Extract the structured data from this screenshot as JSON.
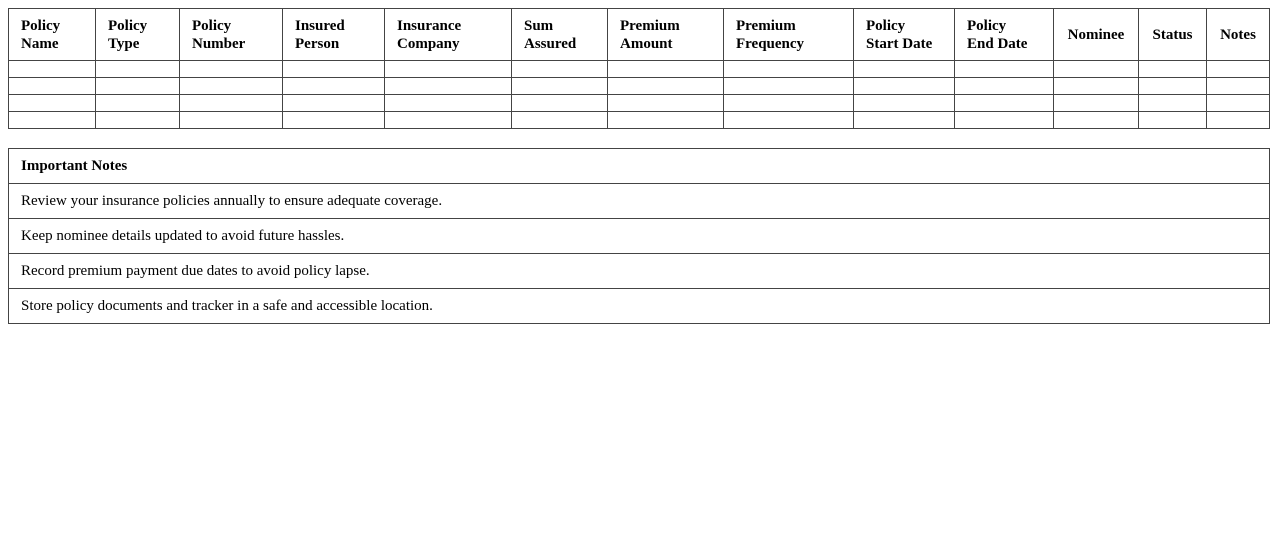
{
  "policy_table": {
    "headers": [
      "Policy\nName",
      "Policy\nType",
      "Policy\nNumber",
      "Insured\nPerson",
      "Insurance\nCompany",
      "Sum\nAssured",
      "Premium\nAmount",
      "Premium\nFrequency",
      "Policy\nStart Date",
      "Policy\nEnd Date",
      "Nominee",
      "Status",
      "Notes"
    ],
    "rows": [
      [
        "",
        "",
        "",
        "",
        "",
        "",
        "",
        "",
        "",
        "",
        "",
        "",
        ""
      ],
      [
        "",
        "",
        "",
        "",
        "",
        "",
        "",
        "",
        "",
        "",
        "",
        "",
        ""
      ],
      [
        "",
        "",
        "",
        "",
        "",
        "",
        "",
        "",
        "",
        "",
        "",
        "",
        ""
      ],
      [
        "",
        "",
        "",
        "",
        "",
        "",
        "",
        "",
        "",
        "",
        "",
        "",
        ""
      ]
    ]
  },
  "notes": {
    "title": "Important Notes",
    "items": [
      "Review your insurance policies annually to ensure adequate coverage.",
      "Keep nominee details updated to avoid future hassles.",
      "Record premium payment due dates to avoid policy lapse.",
      "Store policy documents and tracker in a safe and accessible location."
    ]
  }
}
